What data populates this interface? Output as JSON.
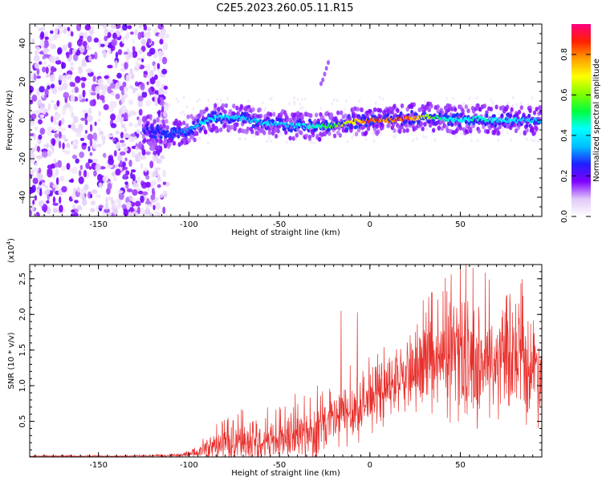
{
  "title": "C2E5.2023.260.05.11.R15",
  "chart_data": [
    {
      "type": "heatmap",
      "title": "C2E5.2023.260.05.11.R15",
      "xlabel": "Height of straight line (km)",
      "ylabel": "Frequency (Hz)",
      "xlim": [
        -188,
        95
      ],
      "ylim": [
        -50,
        50
      ],
      "xticks": [
        -150,
        -100,
        -50,
        0,
        50
      ],
      "xtick_labels": [
        "-150",
        "-100",
        "-50",
        "0",
        "50"
      ],
      "yticks": [
        -40,
        -20,
        0,
        20,
        40
      ],
      "ytick_labels": [
        "-40",
        "-20",
        "0",
        "20",
        "40"
      ],
      "colorbar": {
        "label": "Normalized spectral amplitude",
        "range": [
          0,
          0.95
        ],
        "ticks": [
          0.0,
          0.2,
          0.4,
          0.6,
          0.8
        ],
        "tick_labels": [
          "0.0",
          "0.2",
          "0.4",
          "0.6",
          "0.8"
        ],
        "colormap": [
          "#ffffff",
          "#e0c8f8",
          "#7f00ff",
          "#2020ff",
          "#00bfff",
          "#00ffff",
          "#00ff40",
          "#80ff00",
          "#ffff00",
          "#ffa000",
          "#ff2000",
          "#ff0080"
        ]
      },
      "ridge": {
        "description_free": true,
        "x": [
          -125,
          -110,
          -100,
          -90,
          -80,
          -70,
          -60,
          -50,
          -40,
          -30,
          -20,
          -10,
          0,
          10,
          20,
          30,
          40,
          50,
          60,
          70,
          80,
          90
        ],
        "freq": [
          -5,
          -7,
          -5,
          0,
          2,
          1,
          -1,
          -2,
          -3,
          -3,
          -3,
          -1,
          0,
          0,
          1,
          2,
          1,
          0,
          1,
          0,
          0,
          0
        ],
        "peak_amplitude": [
          0.25,
          0.3,
          0.35,
          0.45,
          0.45,
          0.4,
          0.4,
          0.4,
          0.45,
          0.5,
          0.6,
          0.75,
          0.9,
          0.85,
          0.9,
          0.7,
          0.5,
          0.45,
          0.5,
          0.45,
          0.45,
          0.4
        ]
      },
      "noise_region_x": [
        -188,
        -112
      ],
      "annotation_blob": {
        "x": -25,
        "freq": 24
      }
    },
    {
      "type": "line",
      "xlabel": "Height of straight line (km)",
      "ylabel": "SNR (10 * v/v)",
      "y_multiplier_label": "(x10",
      "y_multiplier_exp": "4",
      "y_multiplier_close": ")",
      "xlim": [
        -188,
        95
      ],
      "ylim": [
        0,
        2.7
      ],
      "xticks": [
        -150,
        -100,
        -50,
        0,
        50
      ],
      "xtick_labels": [
        "-150",
        "-100",
        "-50",
        "0",
        "50"
      ],
      "yticks": [
        0.5,
        1.0,
        1.5,
        2.0,
        2.5
      ],
      "ytick_labels": [
        "0.5",
        "1.0",
        "1.5",
        "2.0",
        "2.5"
      ],
      "color": "#e8302c",
      "envelope": {
        "x": [
          -188,
          -140,
          -110,
          -100,
          -95,
          -90,
          -80,
          -70,
          -60,
          -50,
          -40,
          -30,
          -20,
          -10,
          0,
          10,
          20,
          30,
          40,
          50,
          60,
          70,
          80,
          95
        ],
        "base": [
          0.01,
          0.01,
          0.02,
          0.03,
          0.06,
          0.12,
          0.18,
          0.2,
          0.22,
          0.25,
          0.3,
          0.35,
          0.5,
          0.65,
          0.8,
          0.95,
          1.1,
          1.25,
          1.3,
          1.35,
          1.3,
          1.3,
          1.3,
          1.25
        ],
        "spread": [
          0.01,
          0.01,
          0.02,
          0.04,
          0.08,
          0.2,
          0.3,
          0.35,
          0.35,
          0.35,
          0.45,
          0.5,
          0.55,
          0.55,
          0.5,
          0.5,
          0.55,
          0.7,
          0.9,
          1.0,
          1.0,
          0.9,
          0.9,
          0.9
        ]
      },
      "spikes": [
        {
          "x": -16,
          "y": 2.05
        },
        {
          "x": -7,
          "y": 2.03
        },
        {
          "x": 50,
          "y": 2.7
        },
        {
          "x": 53,
          "y": 2.7
        }
      ]
    }
  ]
}
